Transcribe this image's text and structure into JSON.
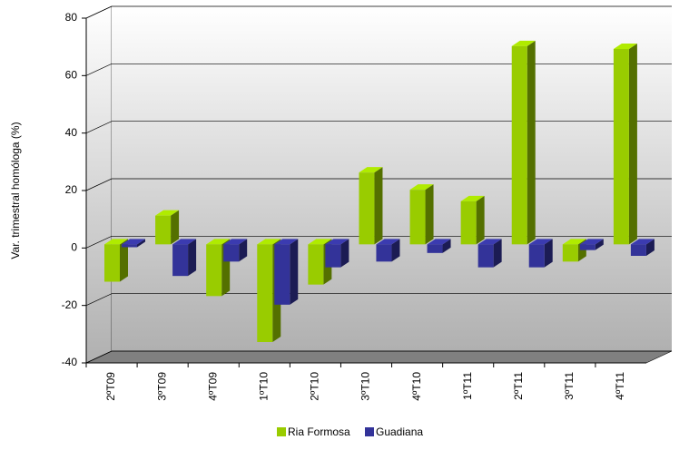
{
  "chart_data": {
    "type": "bar3d",
    "y_label": "Var. trimestral homóloga (%)",
    "categories": [
      "2ºT09",
      "3ºT09",
      "4ºT09",
      "1ºT10",
      "2ºT10",
      "3ºT10",
      "4ºT10",
      "1ºT11",
      "2ºT11",
      "3ºT11",
      "4ºT11"
    ],
    "series": [
      {
        "name": "Ria Formosa",
        "color": "#99cc00",
        "values": [
          -13,
          10,
          -18,
          -34,
          -14,
          25,
          19,
          15,
          69,
          -6,
          68
        ]
      },
      {
        "name": "Guadiana",
        "color": "#333399",
        "values": [
          -1,
          -11,
          -6,
          -21,
          -8,
          -6,
          -3,
          -8,
          -8,
          -2,
          -4
        ]
      }
    ],
    "ylim": [
      -40,
      80
    ],
    "yticks": [
      -40,
      -20,
      0,
      20,
      40,
      60,
      80
    ],
    "grid": true
  }
}
